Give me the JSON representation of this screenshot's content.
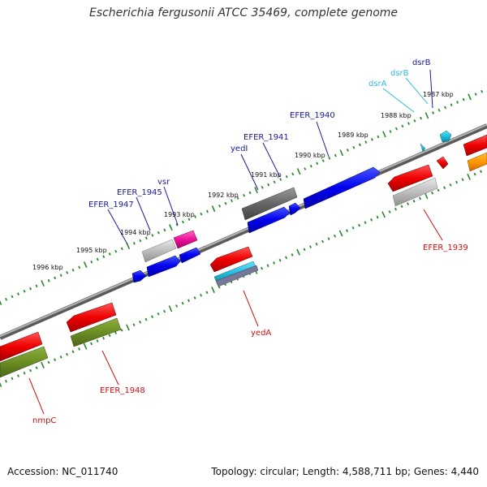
{
  "title": "Escherichia fergusonii ATCC 35469, complete genome",
  "footer": {
    "accession": "Accession: NC_011740",
    "summary": "Topology: circular; Length: 4,588,711 bp; Genes: 4,440"
  },
  "colors": {
    "forward_label": "#1a1a99",
    "reverse_label": "#cc1111",
    "rna_label": "#33bbdd",
    "backbone": "#8a8a8a",
    "tick": "#2a8a2a"
  },
  "tick_labels": [
    "1987 kbp",
    "1988 kbp",
    "1989 kbp",
    "1990 kbp",
    "1991 kbp",
    "1992 kbp",
    "1993 kbp",
    "1994 kbp",
    "1995 kbp",
    "1996 kbp"
  ],
  "forward_gene_labels": [
    "dsrB",
    "EFER_1940",
    "EFER_1941",
    "yedI",
    "vsr",
    "EFER_1945",
    "EFER_1947"
  ],
  "rna_gene_labels": [
    "dsrB",
    "dsrA"
  ],
  "reverse_gene_labels": [
    "EFER_1939",
    "yedA",
    "EFER_1948",
    "nmpC"
  ]
}
